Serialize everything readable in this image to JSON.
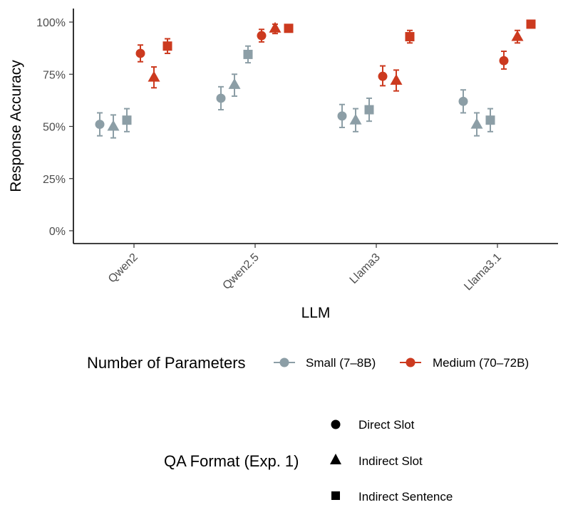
{
  "chart_data": {
    "type": "scatter",
    "xlabel": "LLM",
    "ylabel": "Response Accuracy",
    "categories": [
      "Qwen2",
      "Qwen2.5",
      "Llama3",
      "Llama3.1"
    ],
    "ylim": [
      0,
      1.06
    ],
    "yticks": [
      0,
      0.25,
      0.5,
      0.75,
      1.0
    ],
    "ytick_labels": [
      "0%",
      "25%",
      "50%",
      "75%",
      "100%"
    ],
    "grid": false,
    "colors": {
      "Small (7–8B)": "#8c9ea6",
      "Medium (70–72B)": "#cc3a1f"
    },
    "shapes": {
      "Direct Slot": "circle",
      "Indirect Slot": "triangle",
      "Indirect Sentence": "square"
    },
    "series": [
      {
        "size": "Small (7–8B)",
        "format": "Direct Slot",
        "values": [
          0.51,
          0.635,
          0.55,
          0.62
        ],
        "err_low": [
          0.455,
          0.58,
          0.495,
          0.565
        ],
        "err_high": [
          0.565,
          0.69,
          0.605,
          0.675
        ]
      },
      {
        "size": "Small (7–8B)",
        "format": "Indirect Slot",
        "values": [
          0.5,
          0.7,
          0.53,
          0.51
        ],
        "err_low": [
          0.445,
          0.645,
          0.475,
          0.455
        ],
        "err_high": [
          0.555,
          0.75,
          0.585,
          0.565
        ]
      },
      {
        "size": "Small (7–8B)",
        "format": "Indirect Sentence",
        "values": [
          0.53,
          0.845,
          0.58,
          0.53
        ],
        "err_low": [
          0.475,
          0.805,
          0.525,
          0.475
        ],
        "err_high": [
          0.585,
          0.885,
          0.635,
          0.585
        ]
      },
      {
        "size": "Medium (70–72B)",
        "format": "Direct Slot",
        "values": [
          0.85,
          0.935,
          0.74,
          0.815
        ],
        "err_low": [
          0.81,
          0.905,
          0.695,
          0.775
        ],
        "err_high": [
          0.89,
          0.965,
          0.79,
          0.86
        ]
      },
      {
        "size": "Medium (70–72B)",
        "format": "Indirect Slot",
        "values": [
          0.735,
          0.97,
          0.72,
          0.93
        ],
        "err_low": [
          0.685,
          0.945,
          0.67,
          0.9
        ],
        "err_high": [
          0.785,
          0.99,
          0.77,
          0.96
        ]
      },
      {
        "size": "Medium (70–72B)",
        "format": "Indirect Sentence",
        "values": [
          0.885,
          0.97,
          0.93,
          0.99
        ],
        "err_low": [
          0.85,
          0.955,
          0.9,
          0.985
        ],
        "err_high": [
          0.92,
          0.985,
          0.96,
          0.995
        ]
      }
    ]
  },
  "legend": {
    "size_title": "Number of Parameters",
    "size_items": [
      {
        "label": "Small (7–8B)",
        "color": "#8c9ea6"
      },
      {
        "label": "Medium (70–72B)",
        "color": "#cc3a1f"
      }
    ],
    "shape_title": "QA Format (Exp. 1)",
    "shape_items": [
      {
        "label": "Direct Slot",
        "shape": "circle"
      },
      {
        "label": "Indirect Slot",
        "shape": "triangle"
      },
      {
        "label": "Indirect Sentence",
        "shape": "square"
      }
    ]
  }
}
